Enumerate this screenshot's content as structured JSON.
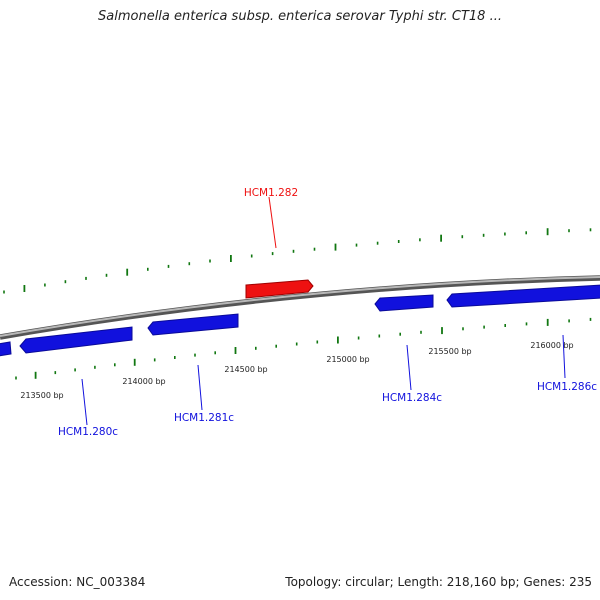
{
  "title": "Salmonella enterica subsp. enterica serovar Typhi str. CT18 ...",
  "footer": {
    "accession": "Accession: NC_003384",
    "stats": "Topology: circular; Length: 218,160 bp; Genes: 235"
  },
  "colors": {
    "forward_gene": "#ee1111",
    "reverse_gene": "#1111dd",
    "tick": "#117711",
    "backbone": "#888888"
  },
  "ruler": [
    {
      "label": "213500 bp"
    },
    {
      "label": "214000 bp"
    },
    {
      "label": "214500 bp"
    },
    {
      "label": "215000 bp"
    },
    {
      "label": "215500 bp"
    },
    {
      "label": "216000 bp"
    }
  ],
  "genes": [
    {
      "label": "HCM1.280c",
      "strand": "reverse"
    },
    {
      "label": "HCM1.281c",
      "strand": "reverse"
    },
    {
      "label": "HCM1.282",
      "strand": "forward"
    },
    {
      "label": "HCM1.284c",
      "strand": "reverse"
    },
    {
      "label": "HCM1.286c",
      "strand": "reverse"
    }
  ]
}
